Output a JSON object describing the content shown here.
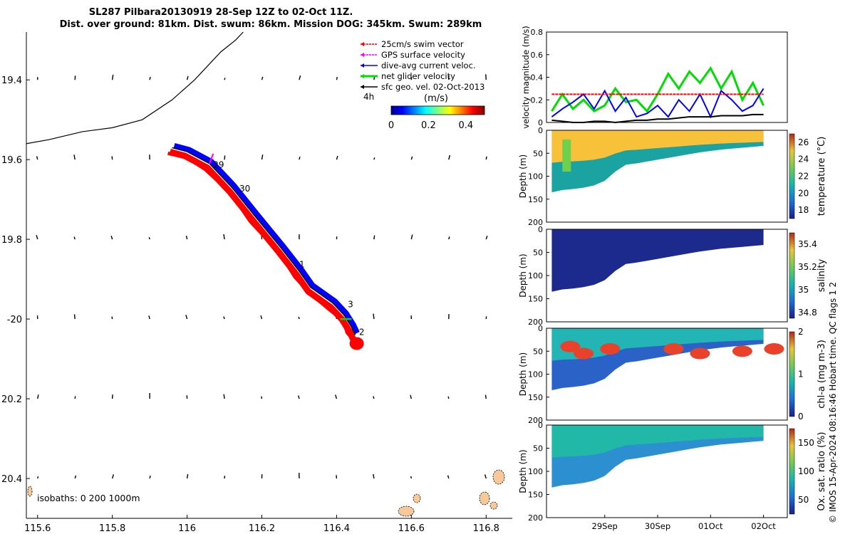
{
  "title_line1": "SL287 Pilbara20130919 28-Sep 12Z to 02-Oct 11Z.",
  "title_line2": "Dist. over ground: 81km. Dist. swum: 86km. Mission DOG: 345km. Swum: 289km",
  "credit": "© IMOS 15-Apr-2024 08:16:46 Hobart time. QC flags 1  2",
  "colors": {
    "swim": "#ff0000",
    "gps": "#ff00ff",
    "current": "#0000ff",
    "net": "#00dd00",
    "geo": "#000000"
  },
  "chart_data": [
    {
      "type": "scatter",
      "name": "map",
      "xlim": [
        115.57,
        116.87
      ],
      "ylim": [
        -20.5,
        -19.28
      ],
      "x_ticks": [
        115.6,
        115.8,
        116,
        116.2,
        116.4,
        116.6,
        116.8
      ],
      "x_tick_labels": [
        "115.6",
        "115.8",
        "116",
        "116.2",
        "116.4",
        "116.6",
        "116.8"
      ],
      "y_ticks": [
        -19.4,
        -19.6,
        -19.8,
        -20,
        -20.2,
        -20.4
      ],
      "y_tick_labels": [
        "19.4",
        "19.6",
        "19.8",
        "-20",
        "20.2",
        "20.4"
      ],
      "legend": [
        {
          "label": "25cm/s swim vector",
          "color": "#ff0000"
        },
        {
          "label": "GPS surface velocity",
          "color": "#ff00ff"
        },
        {
          "label": "dive-avg current veloc.",
          "color": "#0000ff"
        },
        {
          "label": "net glider velocity",
          "color": "#00dd00"
        },
        {
          "label": "sfc geo. vel. 02-Oct-2013",
          "color": "#000000"
        }
      ],
      "legend_extra": "4h",
      "colorbar": {
        "label": "(m/s)",
        "range": [
          0,
          0.5
        ],
        "tick_labels": [
          "0",
          "0.2",
          "0.4"
        ]
      },
      "isobath_label": "isobaths: 0   200  1000m",
      "track_day_labels": [
        {
          "text": "29",
          "lon": 116.07,
          "lat": -19.62
        },
        {
          "text": "30",
          "lon": 116.14,
          "lat": -19.68
        },
        {
          "text": "1",
          "lon": 116.3,
          "lat": -19.87
        },
        {
          "text": "3",
          "lon": 116.43,
          "lat": -19.97
        },
        {
          "text": "2",
          "lon": 116.46,
          "lat": -20.04
        }
      ],
      "glider_track": [
        [
          115.96,
          -19.57
        ],
        [
          116.0,
          -19.58
        ],
        [
          116.06,
          -19.61
        ],
        [
          116.12,
          -19.67
        ],
        [
          116.18,
          -19.74
        ],
        [
          116.25,
          -19.82
        ],
        [
          116.3,
          -19.88
        ],
        [
          116.33,
          -19.92
        ],
        [
          116.39,
          -19.96
        ],
        [
          116.42,
          -19.99
        ],
        [
          116.44,
          -20.02
        ],
        [
          116.45,
          -20.04
        ]
      ],
      "isobath_line": [
        [
          115.57,
          -19.56
        ],
        [
          115.63,
          -19.55
        ],
        [
          115.72,
          -19.53
        ],
        [
          115.8,
          -19.52
        ],
        [
          115.88,
          -19.5
        ],
        [
          115.96,
          -19.45
        ],
        [
          116.02,
          -19.4
        ],
        [
          116.09,
          -19.33
        ],
        [
          116.13,
          -19.3
        ],
        [
          116.15,
          -19.28
        ]
      ]
    },
    {
      "type": "line",
      "name": "velocity",
      "ylabel": "velocity magnitude (m/s)",
      "ylim": [
        0,
        0.8
      ],
      "y_ticks": [
        0,
        0.2,
        0.4,
        0.6,
        0.8
      ],
      "y_tick_labels": [
        "0",
        "0.2",
        "0.4",
        "0.6",
        "0.8"
      ],
      "x": [
        0,
        0.2,
        0.4,
        0.6,
        0.8,
        1.0,
        1.2,
        1.4,
        1.6,
        1.8,
        2.0,
        2.2,
        2.4,
        2.6,
        2.8,
        3.0,
        3.2,
        3.4,
        3.6,
        3.8,
        4.0
      ],
      "series": [
        {
          "color": "#00dd00",
          "values": [
            0.1,
            0.25,
            0.12,
            0.2,
            0.1,
            0.15,
            0.3,
            0.18,
            0.2,
            0.1,
            0.25,
            0.43,
            0.3,
            0.45,
            0.35,
            0.48,
            0.3,
            0.45,
            0.2,
            0.35,
            0.15
          ]
        },
        {
          "color": "#0000ff",
          "values": [
            0.05,
            0.12,
            0.18,
            0.25,
            0.12,
            0.28,
            0.1,
            0.22,
            0.05,
            0.08,
            0.15,
            0.05,
            0.2,
            0.1,
            0.25,
            0.05,
            0.28,
            0.2,
            0.1,
            0.15,
            0.3
          ]
        },
        {
          "color": "#000000",
          "values": [
            0.02,
            0.01,
            0.0,
            0.0,
            0.01,
            0.01,
            0.0,
            0.01,
            0.02,
            0.02,
            0.03,
            0.03,
            0.04,
            0.05,
            0.05,
            0.05,
            0.06,
            0.06,
            0.06,
            0.07,
            0.07
          ]
        },
        {
          "color": "#ff0000",
          "values": [
            0.25,
            0.25,
            0.25,
            0.25,
            0.25,
            0.25,
            0.25,
            0.25,
            0.25,
            0.25,
            0.25,
            0.25,
            0.25,
            0.25,
            0.25,
            0.25,
            0.25,
            0.25,
            0.25,
            0.25,
            0.25
          ]
        }
      ]
    },
    {
      "type": "heatmap",
      "name": "temperature",
      "ylabel": "Depth (m)",
      "colorbar_label": "temperature (°C)",
      "ylim": [
        0,
        200
      ],
      "y_ticks": [
        0,
        50,
        100,
        150,
        200
      ],
      "colorbar_range": [
        17,
        27
      ],
      "colorbar_ticks": [
        18,
        20,
        22,
        24,
        26
      ],
      "bottom_depth": [
        135,
        130,
        128,
        125,
        120,
        110,
        90,
        75,
        72,
        68,
        64,
        60,
        56,
        52,
        48,
        45,
        42,
        40,
        38,
        36,
        34
      ]
    },
    {
      "type": "heatmap",
      "name": "salinity",
      "ylabel": "Depth (m)",
      "colorbar_label": "salinity",
      "ylim": [
        0,
        200
      ],
      "y_ticks": [
        0,
        50,
        100,
        150,
        200
      ],
      "colorbar_range": [
        34.75,
        35.5
      ],
      "colorbar_ticks": [
        34.8,
        35,
        35.2,
        35.4
      ],
      "colorbar_tick_labels": [
        "34.8",
        "35",
        "35.2",
        "35.4"
      ]
    },
    {
      "type": "heatmap",
      "name": "chlorophyll",
      "ylabel": "Depth (m)",
      "colorbar_label": "chl-a (mg m-3)",
      "ylim": [
        0,
        200
      ],
      "y_ticks": [
        0,
        50,
        100,
        150,
        200
      ],
      "colorbar_range": [
        0,
        2
      ],
      "colorbar_ticks": [
        0,
        1,
        2
      ]
    },
    {
      "type": "heatmap",
      "name": "oxygen",
      "ylabel": "Depth (m)",
      "colorbar_label": "Ox. sat. ratio (%)",
      "ylim": [
        0,
        200
      ],
      "y_ticks": [
        0,
        50,
        100,
        150,
        200
      ],
      "colorbar_range": [
        25,
        175
      ],
      "colorbar_ticks": [
        50,
        100,
        150
      ],
      "x_tick_labels": [
        "29Sep",
        "30Sep",
        "01Oct",
        "02Oct"
      ],
      "x_ticks": [
        1.0,
        2.0,
        3.0,
        4.0
      ],
      "xlim": [
        -0.1,
        4.45
      ]
    }
  ]
}
